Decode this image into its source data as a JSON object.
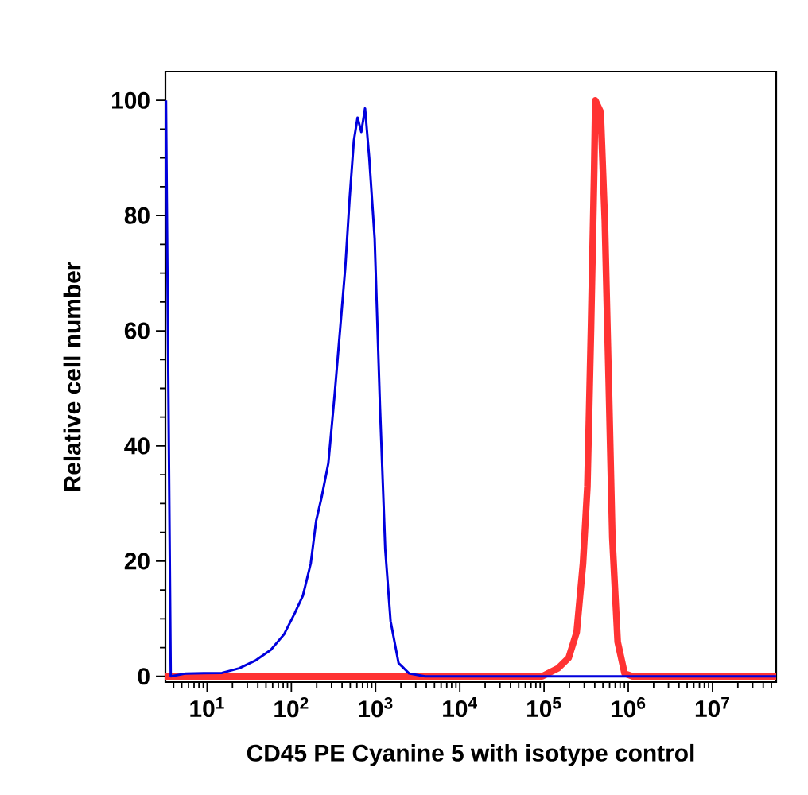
{
  "chart_data": {
    "type": "line",
    "xlabel": "CD45 PE Cyanine 5 with isotype control",
    "ylabel": "Relative cell number",
    "log": "x",
    "xlim": [
      3.2,
      57000000
    ],
    "ylim": [
      -1,
      105
    ],
    "xticks": [
      {
        "value": 10,
        "label": "10$^{1}$"
      },
      {
        "value": 100,
        "label": "10$^{2}$"
      },
      {
        "value": 1000,
        "label": "10$^{3}$"
      },
      {
        "value": 10000,
        "label": "10$^{4}$"
      },
      {
        "value": 100000,
        "label": "10$^{5}$"
      },
      {
        "value": 1000000,
        "label": "10$^{6}$"
      },
      {
        "value": 10000000,
        "label": "10$^{7}$"
      }
    ],
    "yticks": [
      0,
      20,
      40,
      60,
      80,
      100
    ],
    "grid": false,
    "marker": "none",
    "line_style": "solid",
    "series": [
      {
        "color": "#ff3333",
        "x": [
          3.2,
          94800,
          146800,
          196000,
          244000,
          290000,
          327000,
          361000,
          394000,
          406000,
          470000,
          527000,
          585000,
          647000,
          748000,
          904000,
          1125000,
          57000000
        ],
        "values": [
          0,
          0,
          1.4,
          3.2,
          7.7,
          19.6,
          33,
          60.6,
          88,
          100,
          98,
          79,
          51.5,
          24,
          6,
          0.5,
          0,
          0
        ]
      },
      {
        "color": "#0000dd",
        "x": [
          3.25,
          3.7,
          5.6,
          15,
          24,
          37,
          57,
          82,
          110,
          137,
          170,
          197,
          228,
          275,
          327,
          378,
          437,
          492,
          552,
          611,
          677,
          750,
          841,
          975,
          1127,
          1303,
          1507,
          1875,
          2506,
          3873,
          57000000
        ],
        "values": [
          100,
          0,
          0.5,
          0.6,
          1.4,
          2.7,
          4.6,
          7.3,
          11,
          14,
          19.6,
          27,
          31,
          37,
          49,
          60,
          71,
          83,
          93,
          97,
          94.5,
          98.6,
          90,
          76,
          47,
          22,
          9.6,
          2.3,
          0.5,
          0,
          0
        ]
      }
    ]
  }
}
